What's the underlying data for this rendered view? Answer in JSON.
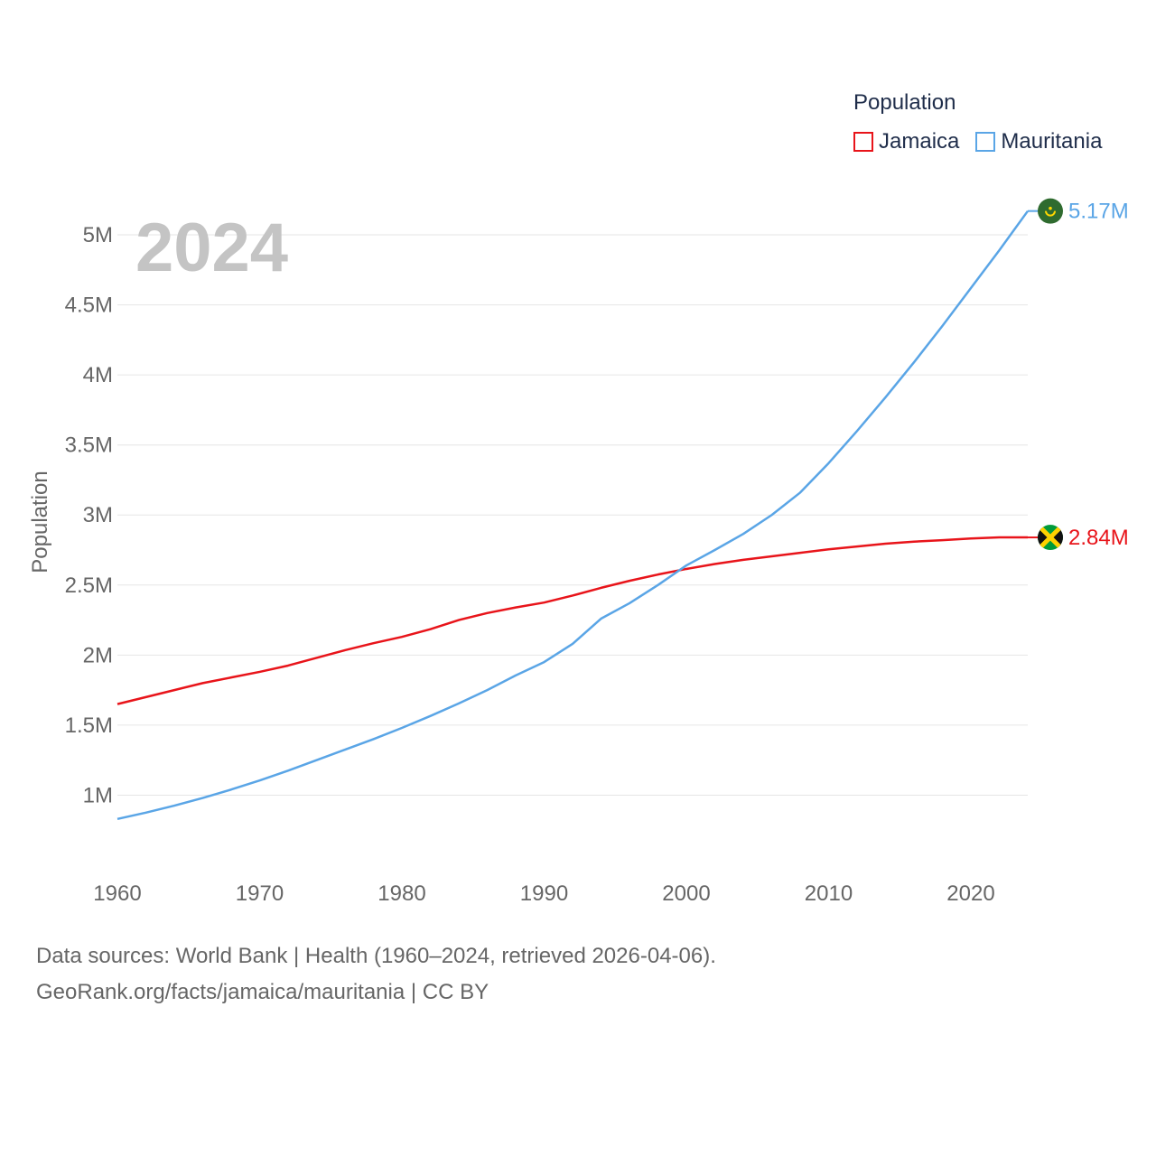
{
  "chart_data": {
    "type": "line",
    "title": "Population",
    "ylabel": "Population",
    "xlabel": "",
    "year_label": "2024",
    "xlim": [
      1960,
      2024
    ],
    "ylim": [
      500000,
      5400000
    ],
    "x_ticks": [
      1960,
      1970,
      1980,
      1990,
      2000,
      2010,
      2020
    ],
    "x_tick_labels": [
      "1960",
      "1970",
      "1980",
      "1990",
      "2000",
      "2010",
      "2020"
    ],
    "y_ticks": [
      1000000,
      1500000,
      2000000,
      2500000,
      3000000,
      3500000,
      4000000,
      4500000,
      5000000
    ],
    "y_tick_labels": [
      "1M",
      "1.5M",
      "2M",
      "2.5M",
      "3M",
      "3.5M",
      "4M",
      "4.5M",
      "5M"
    ],
    "grid": true,
    "legend": {
      "title": "Population",
      "position": "top-right"
    },
    "series": [
      {
        "name": "Jamaica",
        "color": "#e8141a",
        "end_label": "2.84M",
        "flag": "jamaica-flag",
        "x": [
          1960,
          1962,
          1964,
          1966,
          1968,
          1970,
          1972,
          1974,
          1976,
          1978,
          1980,
          1982,
          1984,
          1986,
          1988,
          1990,
          1992,
          1994,
          1996,
          1998,
          2000,
          2002,
          2004,
          2006,
          2008,
          2010,
          2012,
          2014,
          2016,
          2018,
          2020,
          2022,
          2024
        ],
        "values": [
          1650000,
          1700000,
          1750000,
          1800000,
          1840000,
          1880000,
          1925000,
          1980000,
          2035000,
          2085000,
          2130000,
          2185000,
          2250000,
          2300000,
          2340000,
          2375000,
          2425000,
          2480000,
          2530000,
          2575000,
          2615000,
          2650000,
          2680000,
          2705000,
          2730000,
          2755000,
          2775000,
          2795000,
          2810000,
          2820000,
          2832000,
          2840000,
          2840000
        ]
      },
      {
        "name": "Mauritania",
        "color": "#5aa5e6",
        "end_label": "5.17M",
        "flag": "mauritania-flag",
        "x": [
          1960,
          1962,
          1964,
          1966,
          1968,
          1970,
          1972,
          1974,
          1976,
          1978,
          1980,
          1982,
          1984,
          1986,
          1988,
          1990,
          1992,
          1994,
          1996,
          1998,
          2000,
          2002,
          2004,
          2006,
          2008,
          2010,
          2012,
          2014,
          2016,
          2018,
          2020,
          2022,
          2024
        ],
        "values": [
          830000,
          875000,
          925000,
          980000,
          1040000,
          1105000,
          1175000,
          1250000,
          1325000,
          1400000,
          1480000,
          1565000,
          1655000,
          1750000,
          1855000,
          1950000,
          2080000,
          2260000,
          2370000,
          2500000,
          2640000,
          2750000,
          2865000,
          3000000,
          3160000,
          3370000,
          3600000,
          3840000,
          4090000,
          4350000,
          4620000,
          4890000,
          5170000
        ]
      }
    ]
  },
  "footer": {
    "line1": "Data sources: World Bank | Health (1960–2024, retrieved 2026-04-06).",
    "line2": "GeoRank.org/facts/jamaica/mauritania | CC BY"
  }
}
